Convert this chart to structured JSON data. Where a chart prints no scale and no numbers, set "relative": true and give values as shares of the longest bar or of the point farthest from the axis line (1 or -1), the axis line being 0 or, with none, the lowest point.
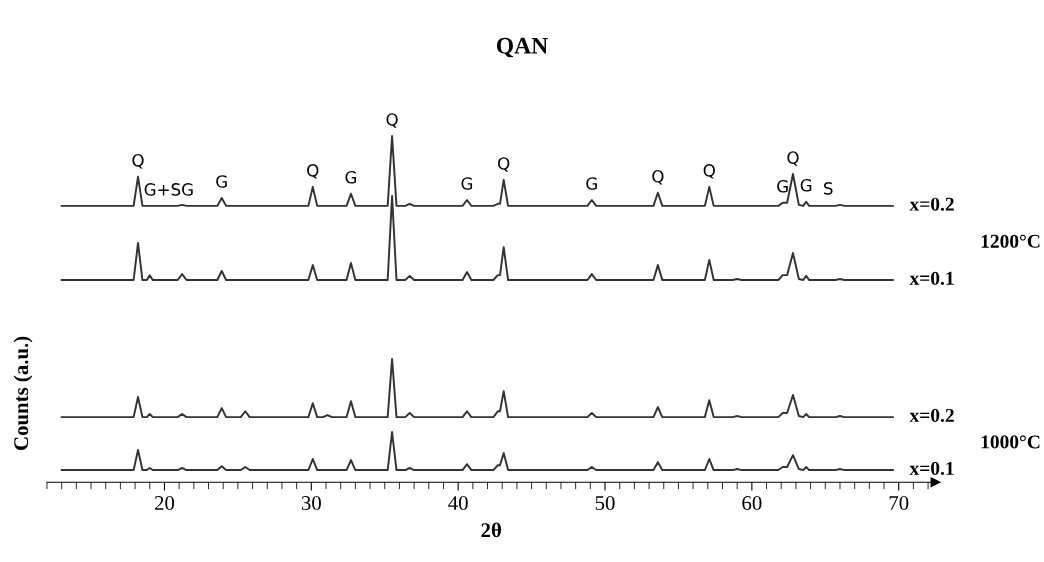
{
  "chart_data": {
    "type": "line",
    "title": "QAN",
    "xlabel": "2θ",
    "ylabel": "Counts (a.u.)",
    "relative": true,
    "xlim": [
      12,
      72.5
    ],
    "xticks": [
      20,
      30,
      40,
      50,
      60,
      70
    ],
    "legend": false,
    "grid": false,
    "marker": "none",
    "line_style": "solid",
    "x": [
      13.0,
      17.9,
      18.2,
      18.5,
      18.8,
      19.0,
      19.2,
      20.9,
      21.2,
      21.5,
      23.6,
      23.9,
      24.2,
      25.2,
      25.5,
      25.8,
      29.8,
      30.1,
      30.4,
      30.8,
      31.1,
      31.4,
      32.4,
      32.7,
      33.0,
      35.2,
      35.5,
      35.8,
      36.4,
      36.7,
      37.0,
      40.3,
      40.6,
      40.9,
      42.4,
      42.7,
      42.85,
      43.1,
      43.4,
      48.8,
      49.1,
      49.4,
      53.3,
      53.6,
      53.9,
      56.8,
      57.1,
      57.4,
      58.7,
      59.0,
      59.3,
      61.8,
      62.1,
      62.4,
      62.8,
      63.2,
      63.5,
      63.7,
      63.9,
      65.7,
      66.0,
      66.3,
      69.6
    ],
    "series": [
      {
        "name": "x=0.2",
        "color": "#333333",
        "values": [
          0.798,
          0.798,
          0.882,
          0.798,
          0.798,
          0.798,
          0.798,
          0.798,
          0.801,
          0.798,
          0.798,
          0.821,
          0.798,
          0.798,
          0.798,
          0.798,
          0.798,
          0.853,
          0.798,
          0.798,
          0.798,
          0.798,
          0.798,
          0.833,
          0.798,
          0.798,
          1.0,
          0.798,
          0.798,
          0.804,
          0.798,
          0.798,
          0.815,
          0.798,
          0.798,
          0.804,
          0.804,
          0.873,
          0.798,
          0.798,
          0.815,
          0.798,
          0.798,
          0.836,
          0.798,
          0.798,
          0.853,
          0.798,
          0.798,
          0.798,
          0.798,
          0.798,
          0.807,
          0.807,
          0.89,
          0.801,
          0.798,
          0.81,
          0.798,
          0.798,
          0.801,
          0.798,
          0.798
        ]
      },
      {
        "name": "x=0.1",
        "color": "#333333",
        "values": [
          0.584,
          0.584,
          0.691,
          0.584,
          0.584,
          0.598,
          0.584,
          0.584,
          0.601,
          0.584,
          0.584,
          0.61,
          0.584,
          0.584,
          0.584,
          0.584,
          0.584,
          0.627,
          0.584,
          0.584,
          0.584,
          0.584,
          0.584,
          0.633,
          0.584,
          0.584,
          0.827,
          0.584,
          0.584,
          0.596,
          0.584,
          0.584,
          0.607,
          0.584,
          0.584,
          0.598,
          0.598,
          0.679,
          0.584,
          0.584,
          0.601,
          0.584,
          0.584,
          0.627,
          0.584,
          0.584,
          0.642,
          0.584,
          0.584,
          0.587,
          0.584,
          0.584,
          0.598,
          0.598,
          0.662,
          0.587,
          0.584,
          0.596,
          0.584,
          0.584,
          0.587,
          0.584,
          0.584
        ]
      },
      {
        "name": "x=0.2",
        "color": "#333333",
        "values": [
          0.188,
          0.188,
          0.246,
          0.188,
          0.188,
          0.197,
          0.188,
          0.188,
          0.197,
          0.188,
          0.188,
          0.214,
          0.188,
          0.188,
          0.205,
          0.188,
          0.188,
          0.228,
          0.188,
          0.188,
          0.194,
          0.188,
          0.188,
          0.234,
          0.188,
          0.188,
          0.356,
          0.188,
          0.188,
          0.2,
          0.188,
          0.188,
          0.205,
          0.188,
          0.188,
          0.205,
          0.205,
          0.263,
          0.188,
          0.188,
          0.2,
          0.188,
          0.188,
          0.217,
          0.188,
          0.188,
          0.237,
          0.188,
          0.188,
          0.191,
          0.188,
          0.188,
          0.2,
          0.2,
          0.252,
          0.191,
          0.188,
          0.197,
          0.188,
          0.188,
          0.191,
          0.188,
          0.188
        ]
      },
      {
        "name": "x=0.1",
        "color": "#333333",
        "values": [
          0.035,
          0.035,
          0.093,
          0.035,
          0.035,
          0.041,
          0.035,
          0.035,
          0.041,
          0.035,
          0.035,
          0.046,
          0.035,
          0.035,
          0.044,
          0.035,
          0.035,
          0.067,
          0.035,
          0.035,
          0.035,
          0.035,
          0.035,
          0.064,
          0.035,
          0.035,
          0.145,
          0.035,
          0.035,
          0.041,
          0.035,
          0.035,
          0.052,
          0.035,
          0.035,
          0.049,
          0.049,
          0.084,
          0.035,
          0.035,
          0.044,
          0.035,
          0.035,
          0.058,
          0.035,
          0.035,
          0.067,
          0.035,
          0.035,
          0.038,
          0.035,
          0.035,
          0.044,
          0.044,
          0.078,
          0.038,
          0.035,
          0.044,
          0.035,
          0.035,
          0.038,
          0.035,
          0.035
        ]
      }
    ],
    "annotations": [
      {
        "text": "Q",
        "x": 18.2,
        "y": 0.882
      },
      {
        "text": "G+SG",
        "x": 20.3,
        "y": 0.798
      },
      {
        "text": "G",
        "x": 23.9,
        "y": 0.821
      },
      {
        "text": "Q",
        "x": 30.1,
        "y": 0.853
      },
      {
        "text": "G",
        "x": 32.7,
        "y": 0.833
      },
      {
        "text": "Q",
        "x": 35.5,
        "y": 1.0
      },
      {
        "text": "G",
        "x": 40.6,
        "y": 0.815
      },
      {
        "text": "Q",
        "x": 43.1,
        "y": 0.873
      },
      {
        "text": "G",
        "x": 49.1,
        "y": 0.815
      },
      {
        "text": "Q",
        "x": 53.6,
        "y": 0.836
      },
      {
        "text": "Q",
        "x": 57.1,
        "y": 0.853
      },
      {
        "text": "G",
        "x": 62.1,
        "y": 0.807
      },
      {
        "text": "Q",
        "x": 62.8,
        "y": 0.89
      },
      {
        "text": "G",
        "x": 63.7,
        "y": 0.81
      },
      {
        "text": "S",
        "x": 65.2,
        "y": 0.801
      },
      "1200°C",
      "1000°C"
    ]
  }
}
